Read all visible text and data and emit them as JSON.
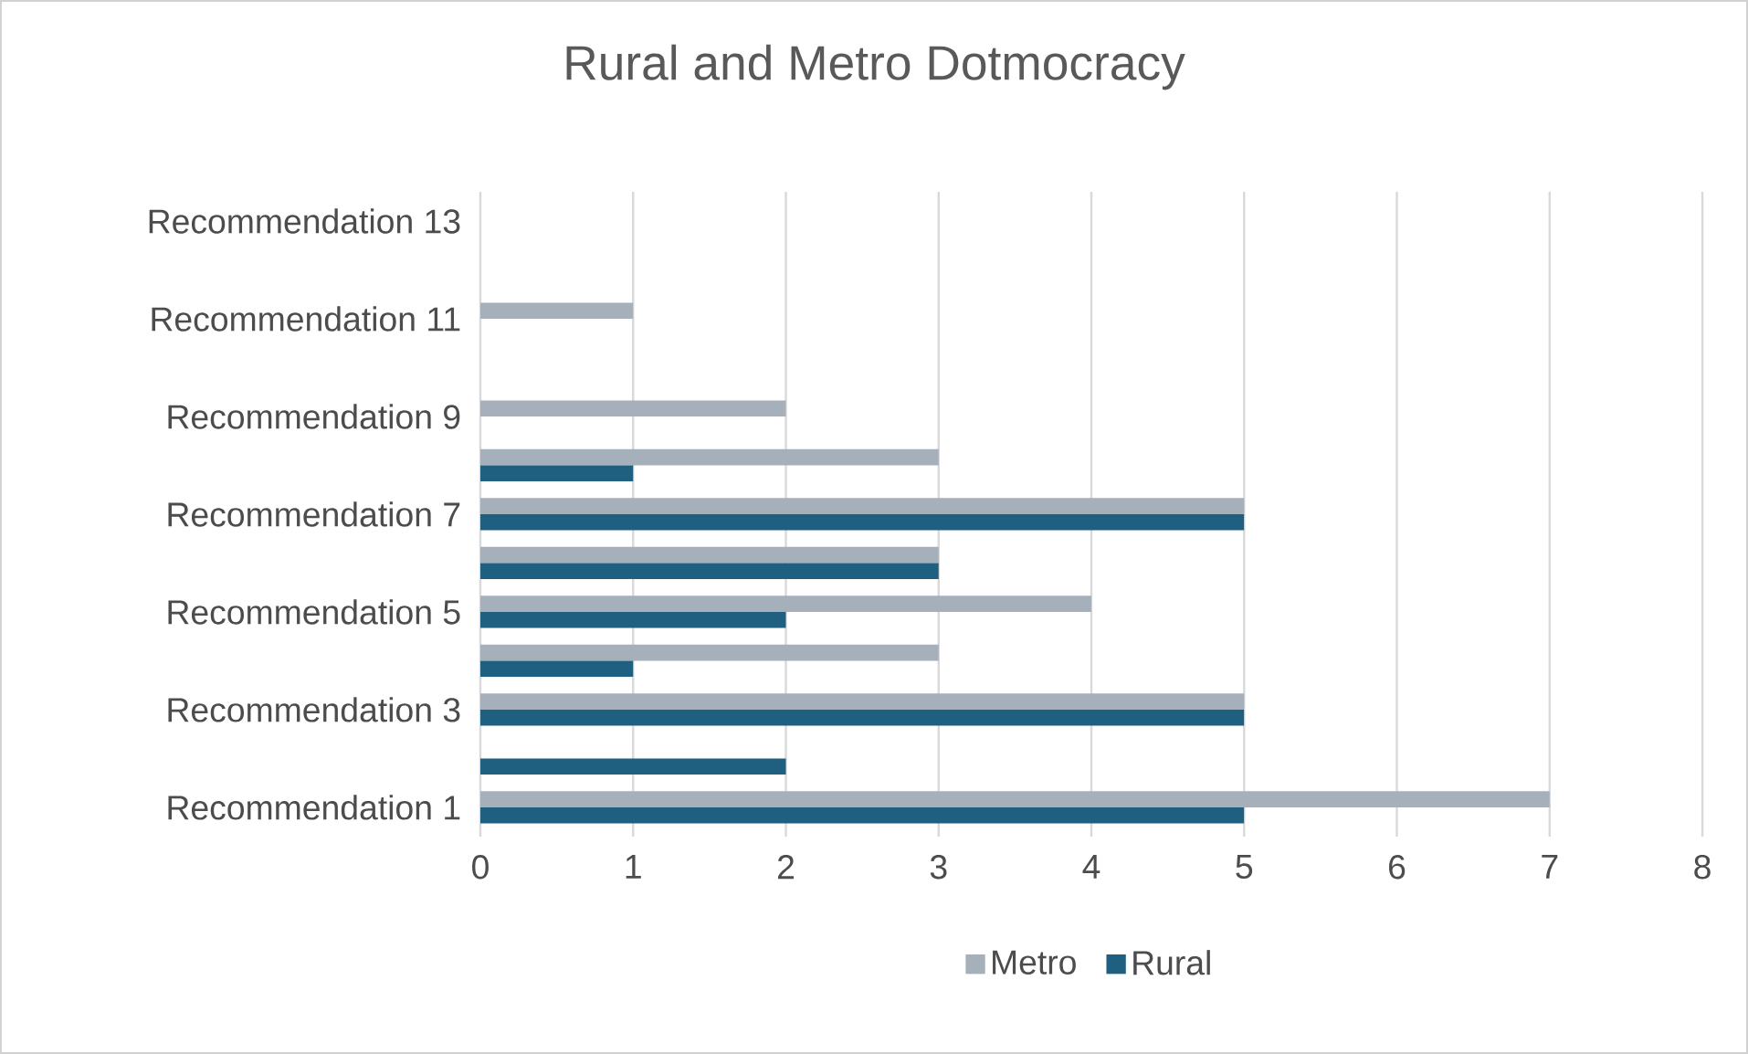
{
  "chart_data": {
    "type": "bar",
    "orientation": "horizontal",
    "title": "Rural and Metro Dotmocracy",
    "categories": [
      "Recommendation 13",
      null,
      "Recommendation 11",
      null,
      "Recommendation  9",
      null,
      "Recommendation  7",
      null,
      "Recommendation  5",
      null,
      "Recommendation  3",
      null,
      "Recommendation 1"
    ],
    "series": [
      {
        "name": "Metro",
        "color": "#a5b0bb",
        "values": [
          0,
          0,
          1,
          0,
          2,
          3,
          5,
          3,
          4,
          3,
          5,
          0,
          7
        ]
      },
      {
        "name": "Rural",
        "color": "#1f5f80",
        "values": [
          0,
          0,
          0,
          0,
          0,
          1,
          5,
          3,
          2,
          1,
          5,
          2,
          5
        ]
      }
    ],
    "xlim": [
      0,
      8
    ],
    "xticks": [
      0,
      1,
      2,
      3,
      4,
      5,
      6,
      7,
      8
    ],
    "grid": "x",
    "legend": "bottom"
  }
}
